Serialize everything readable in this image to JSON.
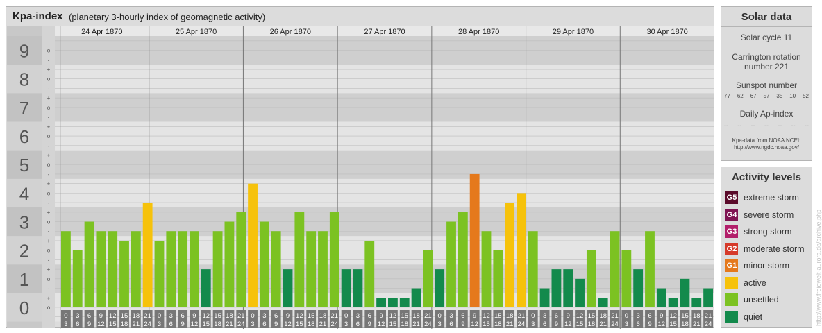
{
  "header": {
    "title": "Kpa-index",
    "subtitle": "(planetary 3-hourly index of geomagnetic activity)"
  },
  "chart_data": {
    "type": "bar",
    "ylim": [
      0,
      9
    ],
    "y_ticks": [
      "0",
      "1",
      "2",
      "3",
      "4",
      "5",
      "6",
      "7",
      "8",
      "9"
    ],
    "sub_marks": [
      "-",
      "o",
      "+"
    ],
    "days": [
      "24 Apr 1870",
      "25 Apr 1870",
      "26 Apr 1870",
      "27 Apr 1870",
      "28 Apr 1870",
      "29 Apr 1870",
      "30 Apr 1870"
    ],
    "intervals": [
      {
        "start": "0",
        "end": "3"
      },
      {
        "start": "3",
        "end": "6"
      },
      {
        "start": "6",
        "end": "9"
      },
      {
        "start": "9",
        "end": "12"
      },
      {
        "start": "12",
        "end": "15"
      },
      {
        "start": "15",
        "end": "18"
      },
      {
        "start": "18",
        "end": "21"
      },
      {
        "start": "21",
        "end": "24"
      }
    ],
    "values": [
      [
        2.667,
        2.0,
        3.0,
        2.667,
        2.667,
        2.333,
        2.667,
        3.667
      ],
      [
        2.333,
        2.667,
        2.667,
        2.667,
        1.333,
        2.667,
        3.0,
        3.333
      ],
      [
        4.333,
        3.0,
        2.667,
        1.333,
        3.333,
        2.667,
        2.667,
        3.333
      ],
      [
        1.333,
        1.333,
        2.333,
        0.333,
        0.333,
        0.333,
        0.667,
        2.0
      ],
      [
        1.333,
        3.0,
        3.333,
        4.667,
        2.667,
        2.0,
        3.667,
        4.0
      ],
      [
        2.667,
        0.667,
        1.333,
        1.333,
        1.0,
        2.0,
        0.333,
        2.667
      ],
      [
        2.0,
        1.333,
        2.667,
        0.667,
        0.333,
        1.0,
        0.333,
        0.667
      ]
    ],
    "level_colors": {
      "quiet": "#138a4c",
      "unsettled": "#7cc222",
      "active": "#f6c20b",
      "G1": "#e5791c"
    },
    "grid": true
  },
  "solar": {
    "title": "Solar data",
    "cycle": "Solar cycle 11",
    "carrington_line1": "Carrington rotation",
    "carrington_line2": "number 221",
    "sunspot_title": "Sunspot number",
    "sunspots": [
      "77",
      "62",
      "67",
      "57",
      "35",
      "10",
      "52"
    ],
    "ap_title": "Daily Ap-index",
    "ap_values": [
      "--",
      "--",
      "--",
      "--",
      "--",
      "--",
      "--"
    ],
    "source_line1": "Kpa-data from NOAA NCEI:",
    "source_line2": "http://www.ngdc.noaa.gov/"
  },
  "levels": {
    "title": "Activity levels",
    "items": [
      {
        "code": "G5",
        "label": "extreme storm",
        "color": "#5a0a2a"
      },
      {
        "code": "G4",
        "label": "severe storm",
        "color": "#7f1452"
      },
      {
        "code": "G3",
        "label": "strong storm",
        "color": "#b21e6a"
      },
      {
        "code": "G2",
        "label": "moderate storm",
        "color": "#d63a2a"
      },
      {
        "code": "G1",
        "label": "minor storm",
        "color": "#e5791c"
      },
      {
        "code": "",
        "label": "active",
        "color": "#f6c20b"
      },
      {
        "code": "",
        "label": "unsettled",
        "color": "#7cc222"
      },
      {
        "code": "",
        "label": "quiet",
        "color": "#138a4c"
      }
    ]
  },
  "watermark": "http://www.freiewelt-aurora.de/archive.php"
}
